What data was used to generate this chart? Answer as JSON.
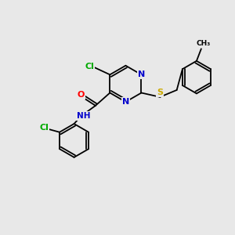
{
  "background_color": "#e8e8e8",
  "atom_colors": {
    "C": "#000000",
    "N": "#0000cc",
    "O": "#ff0000",
    "S": "#ccaa00",
    "Cl": "#00aa00",
    "H": "#000000"
  },
  "bond_color": "#000000",
  "font_size_atom": 8.0,
  "font_size_small": 6.5,
  "lw": 1.3
}
